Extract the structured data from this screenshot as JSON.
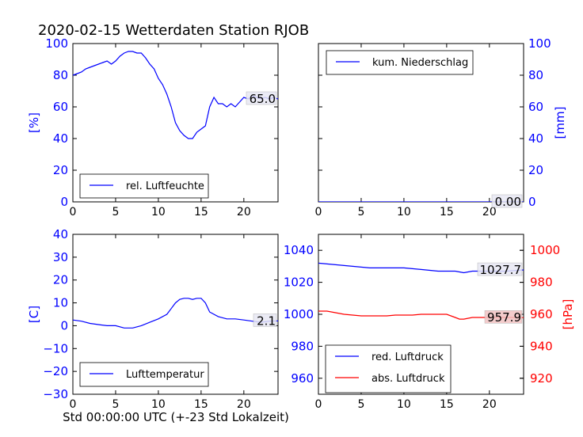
{
  "title": "2020-02-15 Wetterdaten Station RJOB",
  "xlabel": "Std 00:00:00 UTC (+-23 Std Lokalzeit)",
  "colors": {
    "blue": "#0000ff",
    "red": "#ff0000",
    "frame": "#000000"
  },
  "chart_data": [
    {
      "type": "line",
      "panel": "humidity",
      "ylabel": "[%]",
      "xlim": [
        0,
        24
      ],
      "ylim": [
        0,
        100
      ],
      "xticks": [
        "0",
        "5",
        "10",
        "15",
        "20"
      ],
      "yticks": [
        "0",
        "20",
        "40",
        "60",
        "80",
        "100"
      ],
      "legend": "lower-left",
      "series": [
        {
          "name": "rel. Luftfeuchte",
          "color": "#0000ff",
          "x": [
            0,
            0.5,
            1,
            1.5,
            2,
            2.5,
            3,
            3.5,
            4,
            4.5,
            5,
            5.5,
            6,
            6.5,
            7,
            7.5,
            8,
            8.5,
            9,
            9.5,
            10,
            10.5,
            11,
            11.5,
            12,
            12.5,
            13,
            13.5,
            14,
            14.5,
            15,
            15.5,
            16,
            16.5,
            17,
            17.5,
            18,
            18.5,
            19,
            19.5,
            20,
            20.5,
            21,
            21.5,
            22,
            22.5,
            23,
            23.5,
            24
          ],
          "values": [
            80,
            81,
            82,
            84,
            85,
            86,
            87,
            88,
            89,
            87,
            89,
            92,
            94,
            95,
            95,
            94,
            94,
            91,
            87,
            84,
            78,
            74,
            68,
            60,
            50,
            45,
            42,
            40,
            40,
            44,
            46,
            48,
            60,
            66,
            62,
            62,
            60,
            62,
            60,
            63,
            66,
            65,
            67,
            66,
            65,
            66,
            65,
            66,
            65
          ]
        }
      ],
      "last_value_label": "65.0"
    },
    {
      "type": "line",
      "panel": "precipitation",
      "ylabel": "[mm]",
      "xlim": [
        0,
        24
      ],
      "ylim": [
        0,
        100
      ],
      "xticks": [
        "0",
        "5",
        "10",
        "15",
        "20"
      ],
      "yticks": [
        "0",
        "20",
        "40",
        "60",
        "80",
        "100"
      ],
      "legend": "upper-left",
      "series": [
        {
          "name": "kum. Niederschlag",
          "color": "#0000ff",
          "x": [
            0,
            24
          ],
          "values": [
            0,
            0
          ]
        }
      ],
      "last_value_label": "0.00"
    },
    {
      "type": "line",
      "panel": "temperature",
      "ylabel": "[C]",
      "xlim": [
        0,
        24
      ],
      "ylim": [
        -30,
        40
      ],
      "xticks": [
        "0",
        "5",
        "10",
        "15",
        "20"
      ],
      "yticks": [
        "−30",
        "−20",
        "−10",
        "0",
        "10",
        "20",
        "30",
        "40"
      ],
      "legend": "lower-left",
      "series": [
        {
          "name": "Lufttemperatur",
          "color": "#0000ff",
          "x": [
            0,
            1,
            2,
            3,
            4,
            5,
            6,
            7,
            8,
            9,
            10,
            11,
            11.5,
            12,
            12.5,
            13,
            13.5,
            14,
            14.5,
            15,
            15.5,
            16,
            17,
            18,
            19,
            20,
            21,
            22,
            23,
            24
          ],
          "values": [
            2.5,
            2,
            1,
            0.5,
            0,
            0,
            -1,
            -1,
            0,
            1.5,
            3,
            5,
            7.5,
            10,
            11.5,
            12,
            12,
            11.5,
            12,
            12,
            10,
            6,
            4,
            3,
            3,
            2.5,
            2,
            1.5,
            2,
            2.1
          ]
        }
      ],
      "last_value_label": "2.1"
    },
    {
      "type": "line",
      "panel": "pressure",
      "ylabel": "[hPa]",
      "xlim": [
        0,
        24
      ],
      "ylim": [
        950,
        1050
      ],
      "ylim_right": [
        910,
        1010
      ],
      "xticks": [
        "0",
        "5",
        "10",
        "15",
        "20"
      ],
      "yticks": [
        "960",
        "980",
        "1000",
        "1020",
        "1040"
      ],
      "yticks_right": [
        "920",
        "940",
        "960",
        "980",
        "1000"
      ],
      "legend": "lower-left",
      "series": [
        {
          "name": "red. Luftdruck",
          "color": "#0000ff",
          "axis": "left",
          "x": [
            0,
            2,
            4,
            6,
            8,
            10,
            12,
            14,
            16,
            17,
            18,
            20,
            22,
            24
          ],
          "values": [
            1032,
            1031,
            1030,
            1029,
            1029,
            1029,
            1028,
            1027,
            1027,
            1026,
            1027,
            1027,
            1027,
            1027.7
          ]
        },
        {
          "name": "abs. Luftdruck",
          "color": "#ff0000",
          "axis": "right",
          "x": [
            0,
            1,
            2,
            3,
            4,
            5,
            6,
            7,
            8,
            9,
            10,
            11,
            12,
            13,
            14,
            15,
            16,
            16.5,
            17,
            18,
            19,
            20,
            21,
            22,
            23,
            24
          ],
          "values": [
            962,
            962,
            961,
            960,
            959.5,
            959,
            959,
            959,
            959,
            959.5,
            959.5,
            959.5,
            960,
            960,
            960,
            960,
            958,
            957,
            957,
            958,
            958,
            958,
            958,
            958,
            958,
            957.9
          ]
        }
      ],
      "last_value_label_left": "1027.7",
      "last_value_label_right": "957.9"
    }
  ]
}
